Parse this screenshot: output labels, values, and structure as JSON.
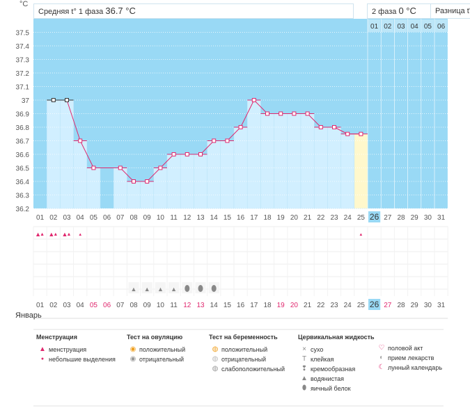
{
  "unit_label": "°C",
  "phase1": {
    "label": "Средняя t° 1 фаза",
    "value": "36.7 °C"
  },
  "phase2": {
    "label": "2 фаза",
    "value": "0 °C"
  },
  "difference": {
    "label": "Разница t° -"
  },
  "month": "Январь",
  "colors": {
    "sky": "#99d9f5",
    "bar": "#d1efff",
    "today_bar": "#fff8cc",
    "line": "#e0286e",
    "marker": "#e0286e",
    "grid": "#ffffff",
    "today_badge": "#99d9f5",
    "weekend": "#e0286e"
  },
  "chart_data": {
    "type": "bar",
    "xlabel": "",
    "ylabel": "°C",
    "ylim": [
      36.2,
      37.6
    ],
    "yticks": [
      "37.5",
      "37.4",
      "37.3",
      "37.2",
      "37.1",
      "37",
      "36.9",
      "36.8",
      "36.7",
      "36.6",
      "36.5",
      "36.4",
      "36.3",
      "36.2"
    ],
    "days": [
      "01",
      "02",
      "03",
      "04",
      "05",
      "06",
      "07",
      "08",
      "09",
      "10",
      "11",
      "12",
      "13",
      "14",
      "15",
      "16",
      "17",
      "18",
      "19",
      "20",
      "21",
      "22",
      "23",
      "24",
      "25",
      "26",
      "27",
      "28",
      "29",
      "30",
      "31"
    ],
    "weekend_days": [
      "05",
      "06",
      "12",
      "13",
      "19",
      "20",
      "26",
      "27"
    ],
    "today": "26",
    "top_days": [
      "01",
      "02",
      "03",
      "04",
      "05",
      "06"
    ],
    "temperatures": [
      null,
      37.0,
      37.0,
      36.7,
      36.5,
      null,
      36.5,
      36.4,
      36.4,
      36.5,
      36.6,
      36.6,
      36.6,
      36.7,
      36.7,
      36.8,
      37.0,
      36.9,
      36.9,
      36.9,
      36.9,
      36.8,
      36.8,
      36.75,
      36.75,
      null,
      null,
      null,
      null,
      null,
      null
    ],
    "black_markers": [
      "02",
      "03"
    ],
    "menstruation_days": [
      "01",
      "02",
      "03"
    ],
    "light_discharge_days": [
      "04",
      "25"
    ],
    "cervical_fluid": {
      "08": "watery",
      "09": "watery",
      "10": "watery",
      "11": "watery",
      "12": "egg-white",
      "13": "egg-white",
      "14": "egg-white"
    }
  },
  "legend": {
    "menstruation": {
      "title": "Менструация",
      "items": [
        {
          "icon": "drops-icon",
          "label": "менструация"
        },
        {
          "icon": "drop-small-icon",
          "label": "небольшие выделения"
        }
      ]
    },
    "ovulation_test": {
      "title": "Тест на овуляцию",
      "items": [
        {
          "icon": "positive-icon",
          "label": "положительный"
        },
        {
          "icon": "negative-icon",
          "label": "отрицательный"
        }
      ]
    },
    "pregnancy_test": {
      "title": "Тест на беременность",
      "items": [
        {
          "icon": "positive-icon",
          "label": "положительный"
        },
        {
          "icon": "negative-icon",
          "label": "отрицательный"
        },
        {
          "icon": "weak-positive-icon",
          "label": "слабоположительный"
        }
      ]
    },
    "cervical": {
      "title": "Цервикальная жидкость",
      "items": [
        {
          "icon": "dry-icon",
          "label": "сухо"
        },
        {
          "icon": "sticky-icon",
          "label": "клейкая"
        },
        {
          "icon": "creamy-icon",
          "label": "кремообразная"
        },
        {
          "icon": "watery-icon",
          "label": "водянистая"
        },
        {
          "icon": "egg-white-icon",
          "label": "яичный белок"
        }
      ]
    },
    "other": {
      "items": [
        {
          "icon": "heart-icon",
          "label": "половой акт"
        },
        {
          "icon": "pill-icon",
          "label": "прием лекарств"
        },
        {
          "icon": "moon-icon",
          "label": "лунный календарь"
        }
      ]
    }
  }
}
